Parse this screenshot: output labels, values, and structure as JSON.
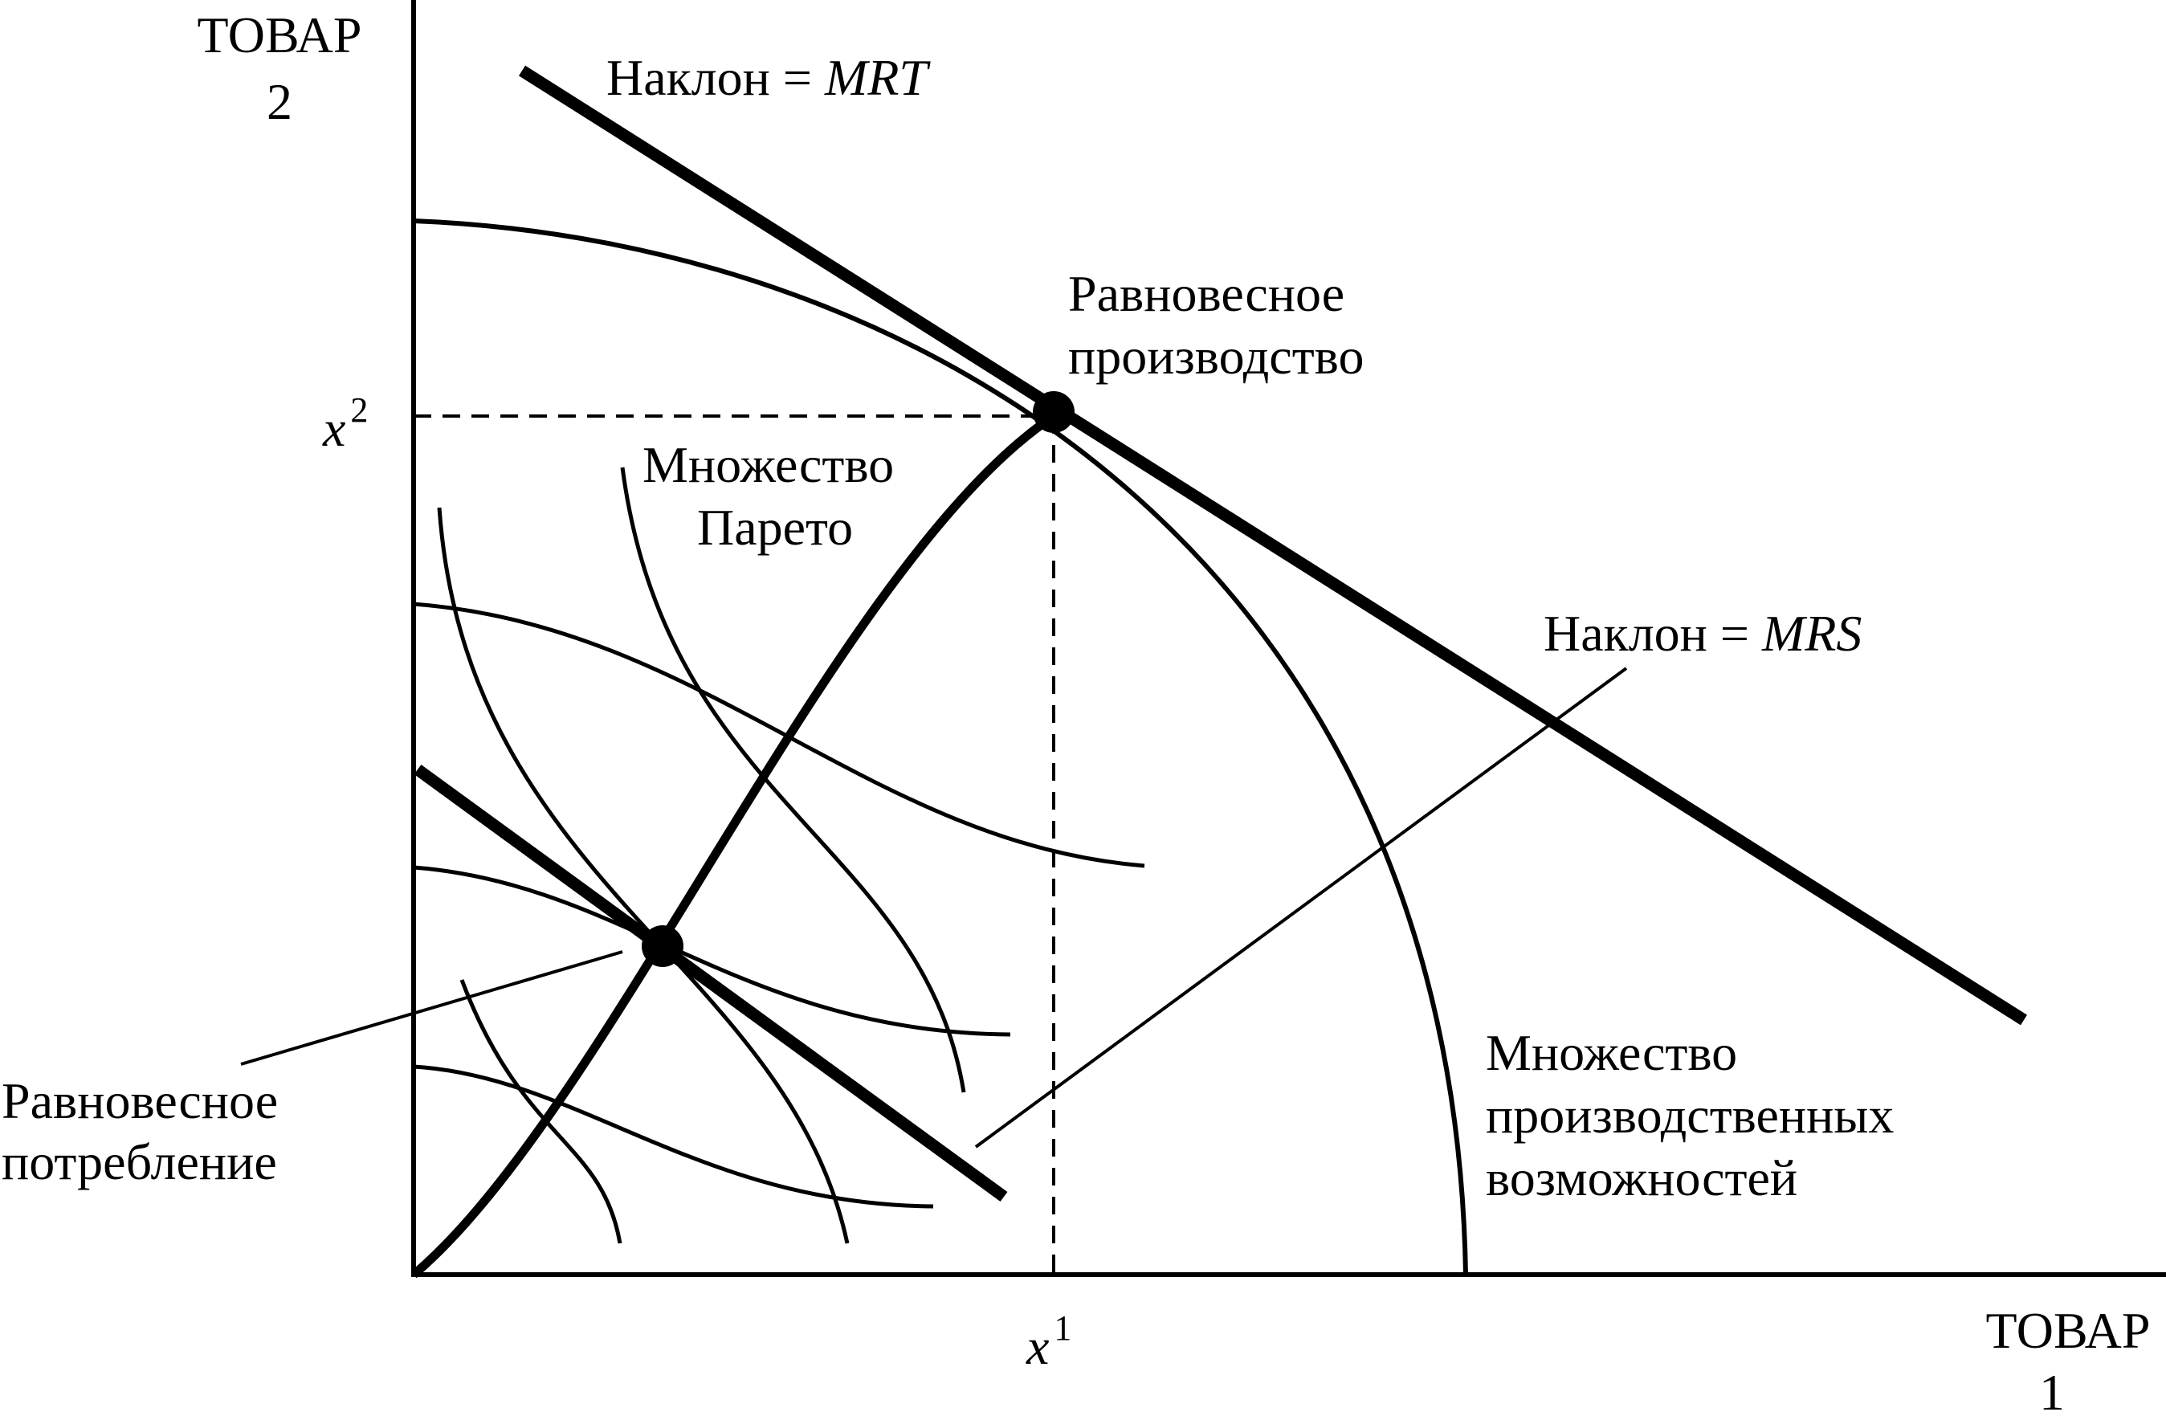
{
  "axes": {
    "y_label_line1": "ТОВАР",
    "y_label_line2": "2",
    "x_label_line1": "ТОВАР",
    "x_label_line2": "1"
  },
  "ticks": {
    "x_var": "x",
    "x_sup": "1",
    "y_var": "x",
    "y_sup": "2"
  },
  "labels": {
    "slope_mrt_prefix": "Наклон = ",
    "slope_mrt_var": "MRT",
    "slope_mrs_prefix": "Наклон = ",
    "slope_mrs_var": "MRS",
    "equilibrium_production_line1": "Равновесное",
    "equilibrium_production_line2": "производство",
    "pareto_set_line1": "Множество",
    "pareto_set_line2": "Парето",
    "equilibrium_consumption_line1": "Равновесное",
    "equilibrium_consumption_line2": "потребление",
    "ppf_line1": "Множество",
    "ppf_line2": "производственных",
    "ppf_line3": "возможностей"
  },
  "colors": {
    "ink": "#000000",
    "background": "#ffffff"
  }
}
